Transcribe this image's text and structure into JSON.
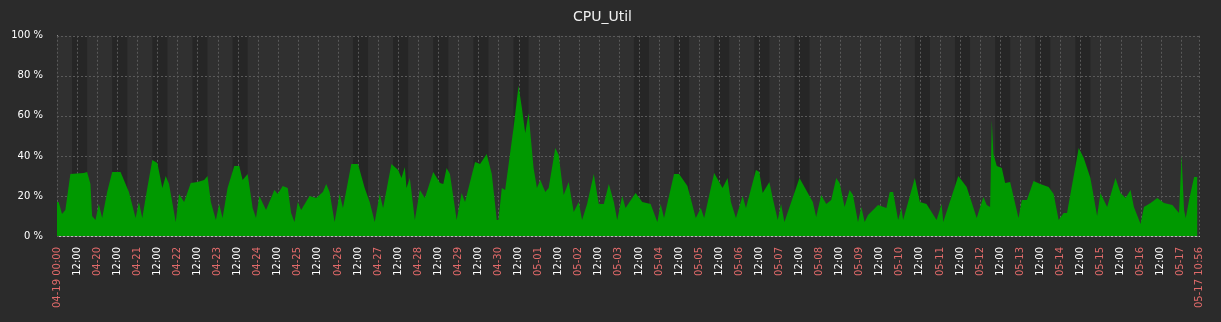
{
  "chart_data": {
    "type": "area",
    "title": "CPU_Util",
    "x": [
      "--04-19T00:00",
      "--04-19T01:00",
      "--04-19T03:00",
      "--04-19T05:00",
      "--04-19T08:00",
      "--04-19T16:00",
      "--04-19T18:00",
      "--04-19T20:00",
      "--04-19T21:00",
      "--04-19T23:00",
      "--04-20T01:00",
      "--04-20T03:00",
      "--04-20T06:00",
      "--04-20T09:00",
      "--04-20T14:00",
      "--04-20T19:00",
      "--04-20T23:00",
      "--04-21T01:00",
      "--04-21T03:00",
      "--04-21T06:00",
      "--04-21T09:00",
      "--04-21T12:00",
      "--04-21T15:00",
      "--04-21T17:00",
      "--04-21T19:00",
      "--04-21T23:00",
      "--04-22T01:00",
      "--04-22T04:00",
      "--04-22T08:00",
      "--04-22T12:00",
      "--04-22T16:00",
      "--04-22T18:00",
      "--04-22T20:00",
      "--04-22T23:00",
      "--04-23T01:00",
      "--04-23T03:00",
      "--04-23T06:00",
      "--04-23T10:00",
      "--04-23T13:00",
      "--04-23T15:00",
      "--04-23T18:00",
      "--04-23T21:00",
      "--04-23T23:00",
      "--04-24T01:00",
      "--04-24T03:00",
      "--04-24T05:00",
      "--04-24T10:00",
      "--04-24T12:00",
      "--04-24T15:00",
      "--04-24T18:00",
      "--04-24T20:00",
      "--04-24T22:00",
      "--04-25T00:00",
      "--04-25T02:00",
      "--04-25T07:00",
      "--04-25T11:00",
      "--04-25T15:00",
      "--04-25T17:00",
      "--04-25T19:00",
      "--04-25T22:00",
      "--04-26T01:00",
      "--04-26T03:00",
      "--04-26T08:00",
      "--04-26T12:00",
      "--04-26T16:00",
      "--04-26T19:00",
      "--04-26T22:00",
      "--04-27T01:00",
      "--04-27T03:00",
      "--04-27T08:00",
      "--04-27T12:00",
      "--04-27T14:00",
      "--04-27T16:00",
      "--04-27T17:00",
      "--04-27T19:00",
      "--04-27T22:00",
      "--04-28T01:00",
      "--04-28T04:00",
      "--04-28T09:00",
      "--04-28T13:00",
      "--04-28T15:00",
      "--04-28T17:00",
      "--04-28T19:00",
      "--04-28T23:00",
      "--04-29T02:00",
      "--04-29T04:00",
      "--04-29T10:00",
      "--04-29T13:00",
      "--04-29T17:00",
      "--04-29T20:00",
      "--04-29T23:00",
      "--04-30T00:00",
      "--04-30T02:00",
      "--04-30T04:00",
      "--04-30T09:00",
      "--04-30T12:00",
      "--04-30T14:00",
      "--04-30T16:00",
      "--04-30T18:00",
      "--04-30T21:00",
      "--04-30T23:00",
      "--05-01T01:00",
      "--05-01T04:00",
      "--05-01T06:00",
      "--05-01T10:00",
      "--05-01T12:00",
      "--05-01T15:00",
      "--05-01T18:00",
      "--05-01T21:00",
      "--05-02T00:00",
      "--05-02T02:00",
      "--05-02T05:00",
      "--05-02T09:00",
      "--05-02T12:00",
      "--05-02T15:00",
      "--05-02T18:00",
      "--05-02T21:00",
      "--05-02T23:00",
      "--05-03T02:00",
      "--05-03T04:00",
      "--05-03T10:00",
      "--05-03T14:00",
      "--05-03T19:00",
      "--05-03T23:00",
      "--05-04T01:00",
      "--05-04T03:00",
      "--05-04T09:00",
      "--05-04T12:00",
      "--05-04T17:00",
      "--05-04T22:00",
      "--05-05T01:00",
      "--05-05T03:00",
      "--05-05T09:00",
      "--05-05T14:00",
      "--05-05T17:00",
      "--05-05T19:00",
      "--05-05T22:00",
      "--05-06T02:00",
      "--05-06T04:00",
      "--05-06T10:00",
      "--05-06T12:00",
      "--05-06T14:00",
      "--05-06T18:00",
      "--05-06T20:00",
      "--05-06T23:00",
      "--05-07T01:00",
      "--05-07T03:00",
      "--05-07T12:00",
      "--05-07T20:00",
      "--05-07T22:00",
      "--05-08T01:00",
      "--05-08T04:00",
      "--05-08T07:00",
      "--05-08T10:00",
      "--05-08T12:00",
      "--05-08T15:00",
      "--05-08T18:00",
      "--05-08T20:00",
      "--05-08T23:00",
      "--05-09T01:00",
      "--05-09T03:00",
      "--05-09T05:00",
      "--05-09T11:00",
      "--05-09T16:00",
      "--05-09T18:00",
      "--05-09T20:00",
      "--05-09T23:00",
      "--05-10T01:00",
      "--05-10T02:00",
      "--05-10T09:00",
      "--05-10T12:00",
      "--05-10T16:00",
      "--05-10T22:00",
      "--05-11T01:00",
      "--05-11T02:00",
      "--05-11T11:00",
      "--05-11T16:00",
      "--05-11T22:00",
      "--05-12T02:00",
      "--05-12T04:00",
      "--05-12T06:00",
      "--05-12T07:00",
      "--05-12T08:00",
      "--05-12T10:00",
      "--05-12T13:00",
      "--05-12T15:00",
      "--05-12T18:00",
      "--05-12T23:00",
      "--05-13T01:00",
      "--05-13T04:00",
      "--05-13T08:00",
      "--05-13T12:00",
      "--05-13T17:00",
      "--05-13T20:00",
      "--05-13T23:00",
      "--05-14T02:00",
      "--05-14T04:00",
      "--05-14T11:00",
      "--05-14T14:00",
      "--05-14T18:00",
      "--05-14T22:00",
      "--05-15T00:00",
      "--05-15T04:00",
      "--05-15T09:00",
      "--05-15T12:00",
      "--05-15T15:00",
      "--05-15T18:00",
      "--05-15T20:00",
      "--05-16T00:00",
      "--05-16T02:00",
      "--05-16T06:00",
      "--05-16T10:00",
      "--05-16T14:00",
      "--05-16T19:00",
      "--05-16T23:00",
      "--05-17T00:30",
      "--05-17T02:00",
      "--05-17T03:00",
      "--05-17T05:00",
      "--05-17T08:00",
      "--05-17T10:00"
    ],
    "series": [
      {
        "color": "#009900",
        "values": [
          17,
          17,
          11,
          13,
          31,
          31.5,
          32,
          26,
          10,
          8,
          16,
          9,
          22,
          32,
          32,
          22,
          9,
          17,
          9,
          24,
          38,
          36.5,
          24,
          30,
          26,
          7,
          21,
          17,
          26.5,
          27,
          28,
          30,
          17,
          8,
          16,
          9,
          24,
          35,
          35,
          28,
          31,
          14,
          9,
          20,
          16.5,
          13,
          23,
          21,
          25,
          24,
          11.5,
          7,
          17,
          13,
          20,
          19,
          22,
          26,
          22,
          7,
          21,
          14,
          36,
          36,
          24,
          17,
          7,
          21,
          14,
          36,
          33,
          29,
          34.5,
          24,
          29,
          8,
          23,
          19,
          32,
          26.5,
          26,
          34,
          31,
          8,
          21.5,
          17,
          37,
          36,
          41,
          31,
          8,
          8,
          24,
          23,
          54,
          75,
          64,
          51.5,
          61.5,
          34,
          24,
          28,
          22,
          24,
          44,
          40.5,
          20.5,
          27,
          12,
          17,
          8,
          16,
          31,
          16,
          16,
          26,
          17,
          8,
          20,
          14,
          21.5,
          17,
          16,
          7,
          16,
          9,
          31,
          31,
          25,
          9,
          14,
          9,
          31.5,
          24,
          29,
          17,
          9,
          20,
          14,
          33,
          32,
          21.5,
          27,
          19,
          8,
          16,
          7,
          29,
          17,
          9.5,
          20.5,
          16,
          18,
          29,
          26.5,
          14.5,
          23,
          20.5,
          7,
          14.5,
          7,
          10.5,
          15.5,
          14,
          22,
          22,
          8,
          14,
          8,
          29,
          17,
          16,
          8,
          16,
          7,
          30,
          24.5,
          9,
          19.5,
          15.5,
          14.5,
          58,
          41,
          35,
          34,
          26.5,
          27,
          9,
          18,
          18,
          27.5,
          26,
          24.5,
          21,
          8,
          11.5,
          11.5,
          44,
          39,
          29,
          10,
          21.5,
          14.5,
          29,
          21.5,
          19,
          23,
          14.5,
          6,
          14.5,
          16.5,
          19,
          16.5,
          15.5,
          11.5,
          40.5,
          13,
          9,
          18,
          29.5,
          29.5
        ]
      }
    ],
    "xlim": [
      "--04-19T00:00",
      "--05-17T10:56"
    ],
    "xticks": [
      {
        "value": "--04-19T00:00",
        "label": "04-19 00:00"
      },
      {
        "value": "--04-19T12:00",
        "label": "12:00"
      },
      {
        "value": "--04-20T00:00",
        "label": "04-20"
      },
      {
        "value": "--04-20T12:00",
        "label": "12:00"
      },
      {
        "value": "--04-21T00:00",
        "label": "04-21"
      },
      {
        "value": "--04-21T12:00",
        "label": "12:00"
      },
      {
        "value": "--04-22T00:00",
        "label": "04-22"
      },
      {
        "value": "--04-22T12:00",
        "label": "12:00"
      },
      {
        "value": "--04-23T00:00",
        "label": "04-23"
      },
      {
        "value": "--04-23T12:00",
        "label": "12:00"
      },
      {
        "value": "--04-24T00:00",
        "label": "04-24"
      },
      {
        "value": "--04-24T12:00",
        "label": "12:00"
      },
      {
        "value": "--04-25T00:00",
        "label": "04-25"
      },
      {
        "value": "--04-25T12:00",
        "label": "12:00"
      },
      {
        "value": "--04-26T00:00",
        "label": "04-26"
      },
      {
        "value": "--04-26T12:00",
        "label": "12:00"
      },
      {
        "value": "--04-27T00:00",
        "label": "04-27"
      },
      {
        "value": "--04-27T12:00",
        "label": "12:00"
      },
      {
        "value": "--04-28T00:00",
        "label": "04-28"
      },
      {
        "value": "--04-28T12:00",
        "label": "12:00"
      },
      {
        "value": "--04-29T00:00",
        "label": "04-29"
      },
      {
        "value": "--04-29T12:00",
        "label": "12:00"
      },
      {
        "value": "--04-30T00:00",
        "label": "04-30"
      },
      {
        "value": "--04-30T12:00",
        "label": "12:00"
      },
      {
        "value": "--05-01T00:00",
        "label": "05-01"
      },
      {
        "value": "--05-01T12:00",
        "label": "12:00"
      },
      {
        "value": "--05-02T00:00",
        "label": "05-02"
      },
      {
        "value": "--05-02T12:00",
        "label": "12:00"
      },
      {
        "value": "--05-03T00:00",
        "label": "05-03"
      },
      {
        "value": "--05-03T12:00",
        "label": "12:00"
      },
      {
        "value": "--05-04T00:00",
        "label": "05-04"
      },
      {
        "value": "--05-04T12:00",
        "label": "12:00"
      },
      {
        "value": "--05-05T00:00",
        "label": "05-05"
      },
      {
        "value": "--05-05T12:00",
        "label": "12:00"
      },
      {
        "value": "--05-06T00:00",
        "label": "05-06"
      },
      {
        "value": "--05-06T12:00",
        "label": "12:00"
      },
      {
        "value": "--05-07T00:00",
        "label": "05-07"
      },
      {
        "value": "--05-07T12:00",
        "label": "12:00"
      },
      {
        "value": "--05-08T00:00",
        "label": "05-08"
      },
      {
        "value": "--05-08T12:00",
        "label": "12:00"
      },
      {
        "value": "--05-09T00:00",
        "label": "05-09"
      },
      {
        "value": "--05-09T12:00",
        "label": "12:00"
      },
      {
        "value": "--05-10T00:00",
        "label": "05-10"
      },
      {
        "value": "--05-10T12:00",
        "label": "12:00"
      },
      {
        "value": "--05-11T00:00",
        "label": "05-11"
      },
      {
        "value": "--05-11T12:00",
        "label": "12:00"
      },
      {
        "value": "--05-12T00:00",
        "label": "05-12"
      },
      {
        "value": "--05-12T12:00",
        "label": "12:00"
      },
      {
        "value": "--05-13T00:00",
        "label": "05-13"
      },
      {
        "value": "--05-13T12:00",
        "label": "12:00"
      },
      {
        "value": "--05-14T00:00",
        "label": "05-14"
      },
      {
        "value": "--05-14T12:00",
        "label": "12:00"
      },
      {
        "value": "--05-15T00:00",
        "label": "05-15"
      },
      {
        "value": "--05-15T12:00",
        "label": "12:00"
      },
      {
        "value": "--05-16T00:00",
        "label": "05-16"
      },
      {
        "value": "--05-16T12:00",
        "label": "12:00"
      },
      {
        "value": "--05-17T00:00",
        "label": "05-17"
      },
      {
        "value": "--05-17T10:56",
        "label": "05-17 10:56"
      }
    ],
    "ylim": [
      0,
      100
    ],
    "yticks": [
      {
        "value": 0,
        "label": "0 %"
      },
      {
        "value": 20,
        "label": "20 %"
      },
      {
        "value": 40,
        "label": "40 %"
      },
      {
        "value": 60,
        "label": "60 %"
      },
      {
        "value": 80,
        "label": "80 %"
      },
      {
        "value": 100,
        "label": "100 %"
      }
    ],
    "bands": [
      {
        "axis": "x",
        "from": "--04-19T09:00",
        "to": "--04-19T18:00",
        "color": "#262626"
      },
      {
        "axis": "x",
        "from": "--04-20T09:00",
        "to": "--04-20T18:00",
        "color": "#262626"
      },
      {
        "axis": "x",
        "from": "--04-21T09:00",
        "to": "--04-21T18:00",
        "color": "#262626"
      },
      {
        "axis": "x",
        "from": "--04-22T09:00",
        "to": "--04-22T18:00",
        "color": "#262626"
      },
      {
        "axis": "x",
        "from": "--04-23T09:00",
        "to": "--04-23T18:00",
        "color": "#262626"
      },
      {
        "axis": "x",
        "from": "--04-26T09:00",
        "to": "--04-26T18:00",
        "color": "#262626"
      },
      {
        "axis": "x",
        "from": "--04-27T09:00",
        "to": "--04-27T18:00",
        "color": "#262626"
      },
      {
        "axis": "x",
        "from": "--04-28T09:00",
        "to": "--04-28T18:00",
        "color": "#262626"
      },
      {
        "axis": "x",
        "from": "--04-29T09:00",
        "to": "--04-29T18:00",
        "color": "#262626"
      },
      {
        "axis": "x",
        "from": "--04-30T09:00",
        "to": "--04-30T18:00",
        "color": "#262626"
      },
      {
        "axis": "x",
        "from": "--05-03T09:00",
        "to": "--05-03T18:00",
        "color": "#262626"
      },
      {
        "axis": "x",
        "from": "--05-04T09:00",
        "to": "--05-04T18:00",
        "color": "#262626"
      },
      {
        "axis": "x",
        "from": "--05-05T09:00",
        "to": "--05-05T18:00",
        "color": "#262626"
      },
      {
        "axis": "x",
        "from": "--05-06T09:00",
        "to": "--05-06T18:00",
        "color": "#262626"
      },
      {
        "axis": "x",
        "from": "--05-07T09:00",
        "to": "--05-07T18:00",
        "color": "#262626"
      },
      {
        "axis": "x",
        "from": "--05-10T09:00",
        "to": "--05-10T18:00",
        "color": "#262626"
      },
      {
        "axis": "x",
        "from": "--05-11T09:00",
        "to": "--05-11T18:00",
        "color": "#262626"
      },
      {
        "axis": "x",
        "from": "--05-12T09:00",
        "to": "--05-12T18:00",
        "color": "#262626"
      },
      {
        "axis": "x",
        "from": "--05-13T09:00",
        "to": "--05-13T18:00",
        "color": "#262626"
      },
      {
        "axis": "x",
        "from": "--05-14T09:00",
        "to": "--05-14T18:00",
        "color": "#262626"
      }
    ],
    "grid": true,
    "legend": false,
    "marker": "none"
  }
}
